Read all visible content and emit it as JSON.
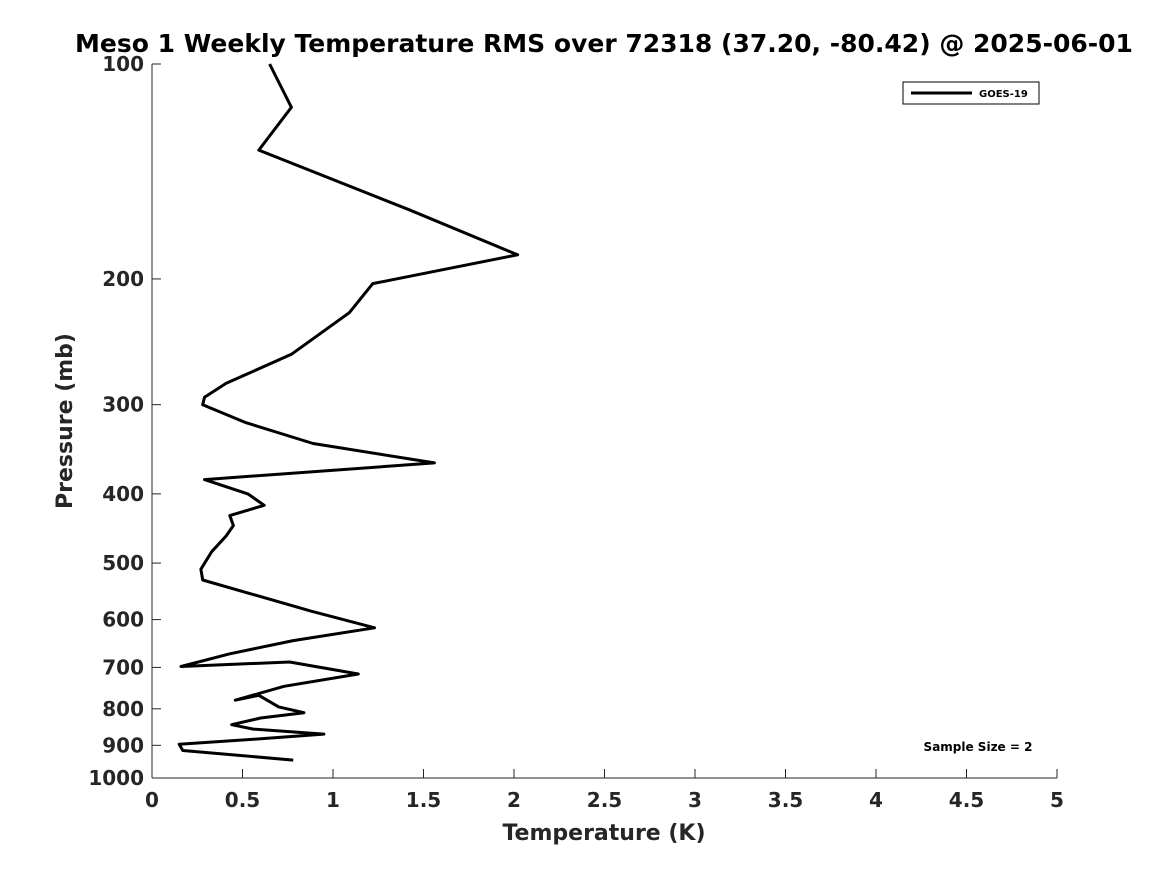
{
  "chart_data": {
    "type": "line",
    "title": "Meso 1 Weekly Temperature RMS over 72318 (37.20, -80.42) @ 2025-06-01",
    "xlabel": "Temperature (K)",
    "ylabel": "Pressure (mb)",
    "xlim": [
      0,
      5
    ],
    "ylim": [
      1000,
      100
    ],
    "y_scale": "log",
    "y_reversed": true,
    "grid": false,
    "x_ticks": [
      0,
      0.5,
      1,
      1.5,
      2,
      2.5,
      3,
      3.5,
      4,
      4.5,
      5
    ],
    "x_tick_labels": [
      "0",
      "0.5",
      "1",
      "1.5",
      "2",
      "2.5",
      "3",
      "3.5",
      "4",
      "4.5",
      "5"
    ],
    "y_ticks": [
      100,
      200,
      300,
      400,
      500,
      600,
      700,
      800,
      900,
      1000
    ],
    "y_tick_labels": [
      "100",
      "200",
      "300",
      "400",
      "500",
      "600",
      "700",
      "800",
      "900",
      "1000"
    ],
    "legend": {
      "position": "top-right",
      "entries": [
        "GOES-19"
      ]
    },
    "annotations": [
      {
        "text": "Sample Size = 2",
        "position": "bottom-right"
      }
    ],
    "series": [
      {
        "name": "GOES-19",
        "color": "#000000",
        "x": [
          0.65,
          0.77,
          0.59,
          1.42,
          2.02,
          1.22,
          1.09,
          0.77,
          0.41,
          0.29,
          0.28,
          0.52,
          0.89,
          1.56,
          0.29,
          0.53,
          0.62,
          0.43,
          0.45,
          0.41,
          0.33,
          0.27,
          0.28,
          0.88,
          1.23,
          0.78,
          0.43,
          0.16,
          0.76,
          1.14,
          0.73,
          0.46,
          0.59,
          0.7,
          0.84,
          0.6,
          0.44,
          0.56,
          0.95,
          0.52,
          0.15,
          0.17,
          0.78
        ],
        "y": [
          100,
          115,
          132,
          160,
          185,
          203,
          223,
          255,
          280,
          293,
          300,
          318,
          340,
          362,
          382,
          400,
          415,
          429,
          443,
          458,
          482,
          510,
          528,
          584,
          616,
          642,
          670,
          698,
          688,
          715,
          744,
          778,
          766,
          795,
          810,
          824,
          842,
          854,
          868,
          884,
          897,
          915,
          944
        ]
      }
    ]
  }
}
